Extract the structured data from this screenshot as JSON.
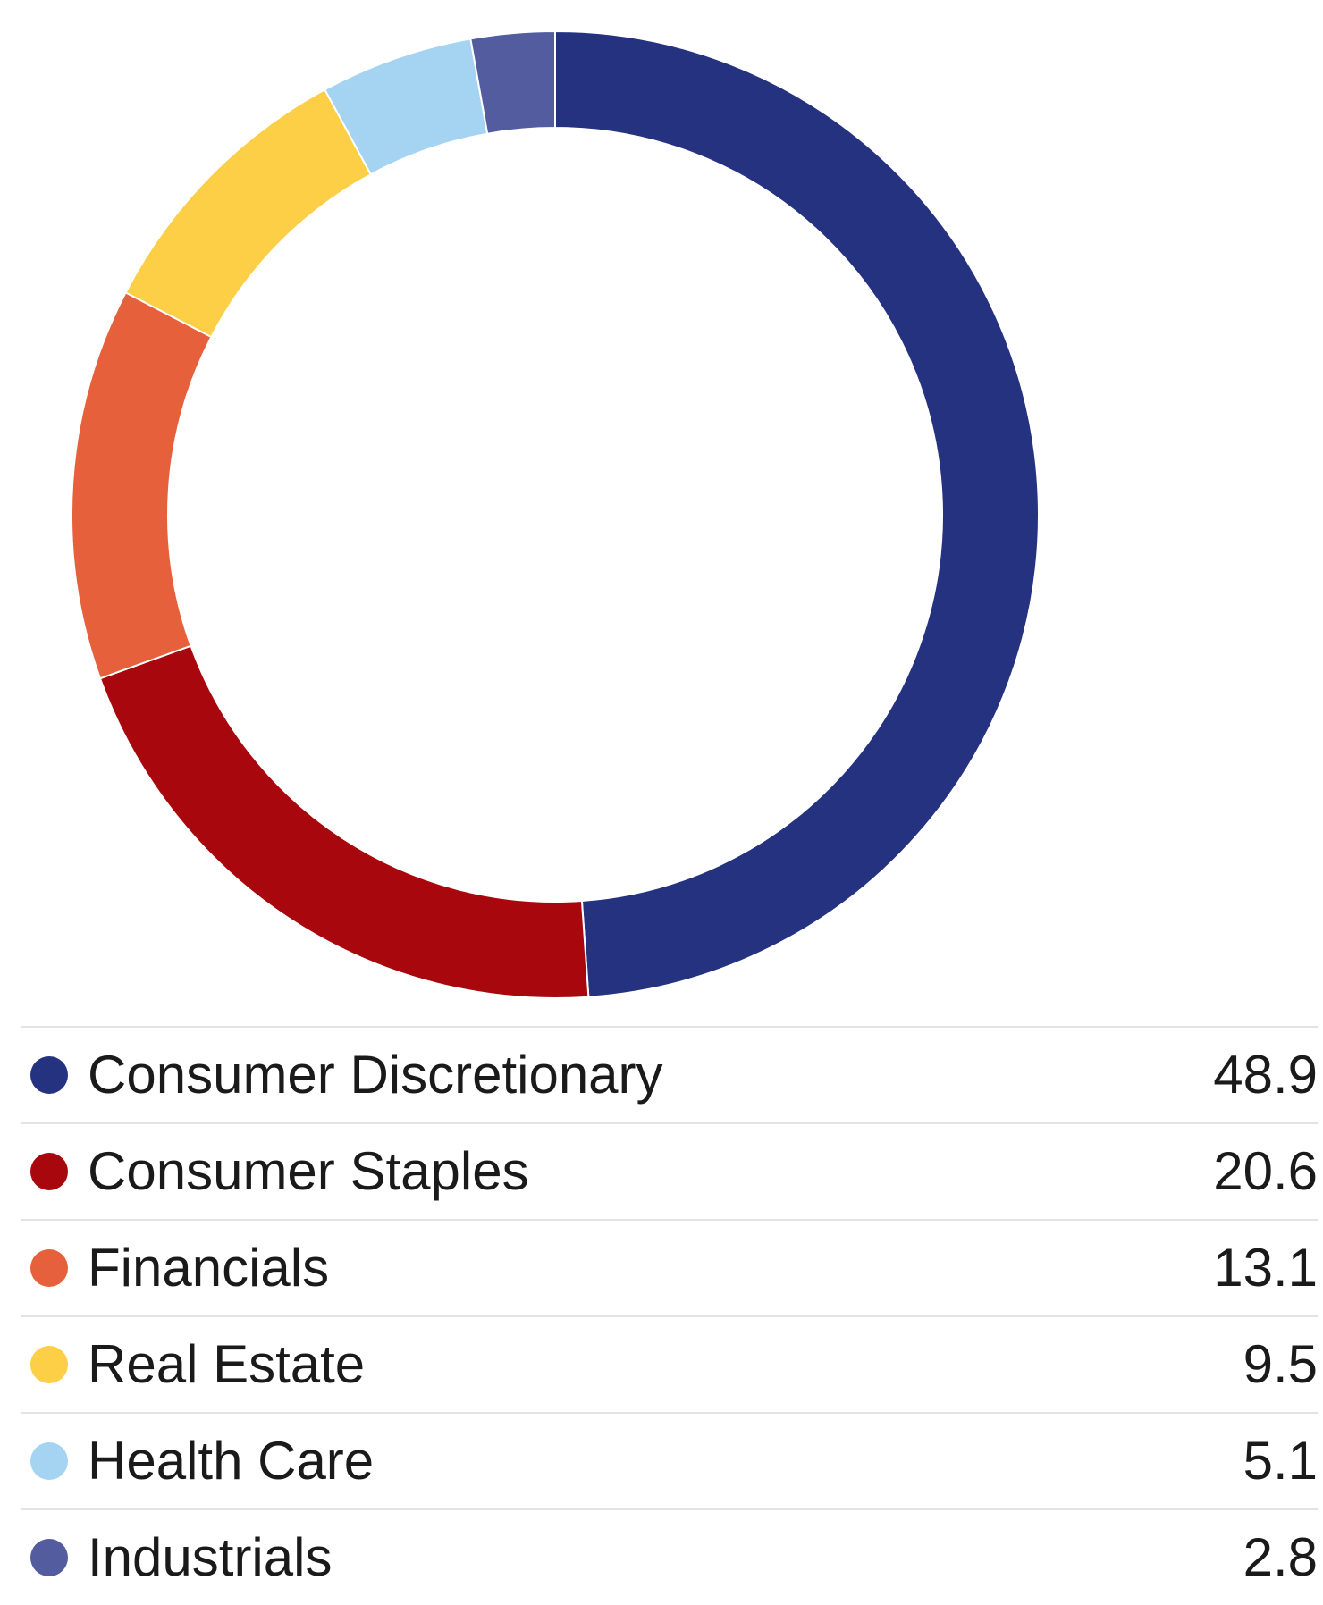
{
  "chart_data": {
    "type": "pie",
    "style": "donut",
    "grid": false,
    "legend_placement": "bottom",
    "categories": [
      "Consumer Discretionary",
      "Consumer Staples",
      "Financials",
      "Real Estate",
      "Health Care",
      "Industrials"
    ],
    "values": [
      48.9,
      20.6,
      13.1,
      9.5,
      5.1,
      2.8
    ],
    "value_labels": [
      "48.9",
      "20.6",
      "13.1",
      "9.5",
      "5.1",
      "2.8"
    ],
    "colors": [
      "#25327f",
      "#a8070d",
      "#e6613b",
      "#fdcf47",
      "#a5d4f2",
      "#525c9f"
    ]
  }
}
